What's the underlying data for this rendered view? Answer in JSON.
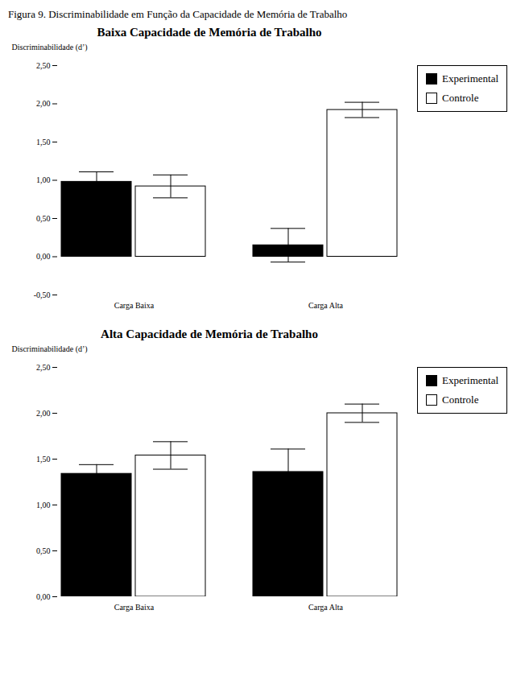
{
  "title": "Figura 9. Discriminabilidade em Função da Capacidade de Memória de Trabalho",
  "chart_data": [
    {
      "type": "bar",
      "title": "Baixa Capacidade de Memória de Trabalho",
      "ylabel": "Discriminabilidade (d’)",
      "categories": [
        "Carga Baixa",
        "Carga Alta"
      ],
      "series": [
        {
          "name": "Experimental",
          "color": "#000000",
          "values": [
            0.98,
            0.15
          ],
          "errors": [
            0.13,
            0.22
          ]
        },
        {
          "name": "Controle",
          "color": "#ffffff",
          "values": [
            0.92,
            1.92
          ],
          "errors": [
            0.15,
            0.1
          ]
        }
      ],
      "ylim": [
        -0.5,
        2.5
      ],
      "yticks": [
        {
          "value": -0.5,
          "label": "-0,50"
        },
        {
          "value": 0,
          "label": "0,00"
        },
        {
          "value": 0.5,
          "label": "0,50"
        },
        {
          "value": 1,
          "label": "1,00"
        },
        {
          "value": 1.5,
          "label": "1,50"
        },
        {
          "value": 2,
          "label": "2,00"
        },
        {
          "value": 2.5,
          "label": "2,50"
        }
      ],
      "grid": false,
      "legend": "right"
    },
    {
      "type": "bar",
      "title": "Alta Capacidade de Memória de Trabalho",
      "ylabel": "Discriminabilidade (d’)",
      "categories": [
        "Carga Baixa",
        "Carga Alta"
      ],
      "series": [
        {
          "name": "Experimental",
          "color": "#000000",
          "values": [
            1.34,
            1.36
          ],
          "errors": [
            0.1,
            0.25
          ]
        },
        {
          "name": "Controle",
          "color": "#ffffff",
          "values": [
            1.54,
            2.0
          ],
          "errors": [
            0.15,
            0.1
          ]
        }
      ],
      "ylim": [
        0,
        2.5
      ],
      "yticks": [
        {
          "value": 0,
          "label": "0,00"
        },
        {
          "value": 0.5,
          "label": "0,50"
        },
        {
          "value": 1,
          "label": "1,00"
        },
        {
          "value": 1.5,
          "label": "1,50"
        },
        {
          "value": 2,
          "label": "2,00"
        },
        {
          "value": 2.5,
          "label": "2,50"
        }
      ],
      "grid": false,
      "legend": "right"
    }
  ]
}
